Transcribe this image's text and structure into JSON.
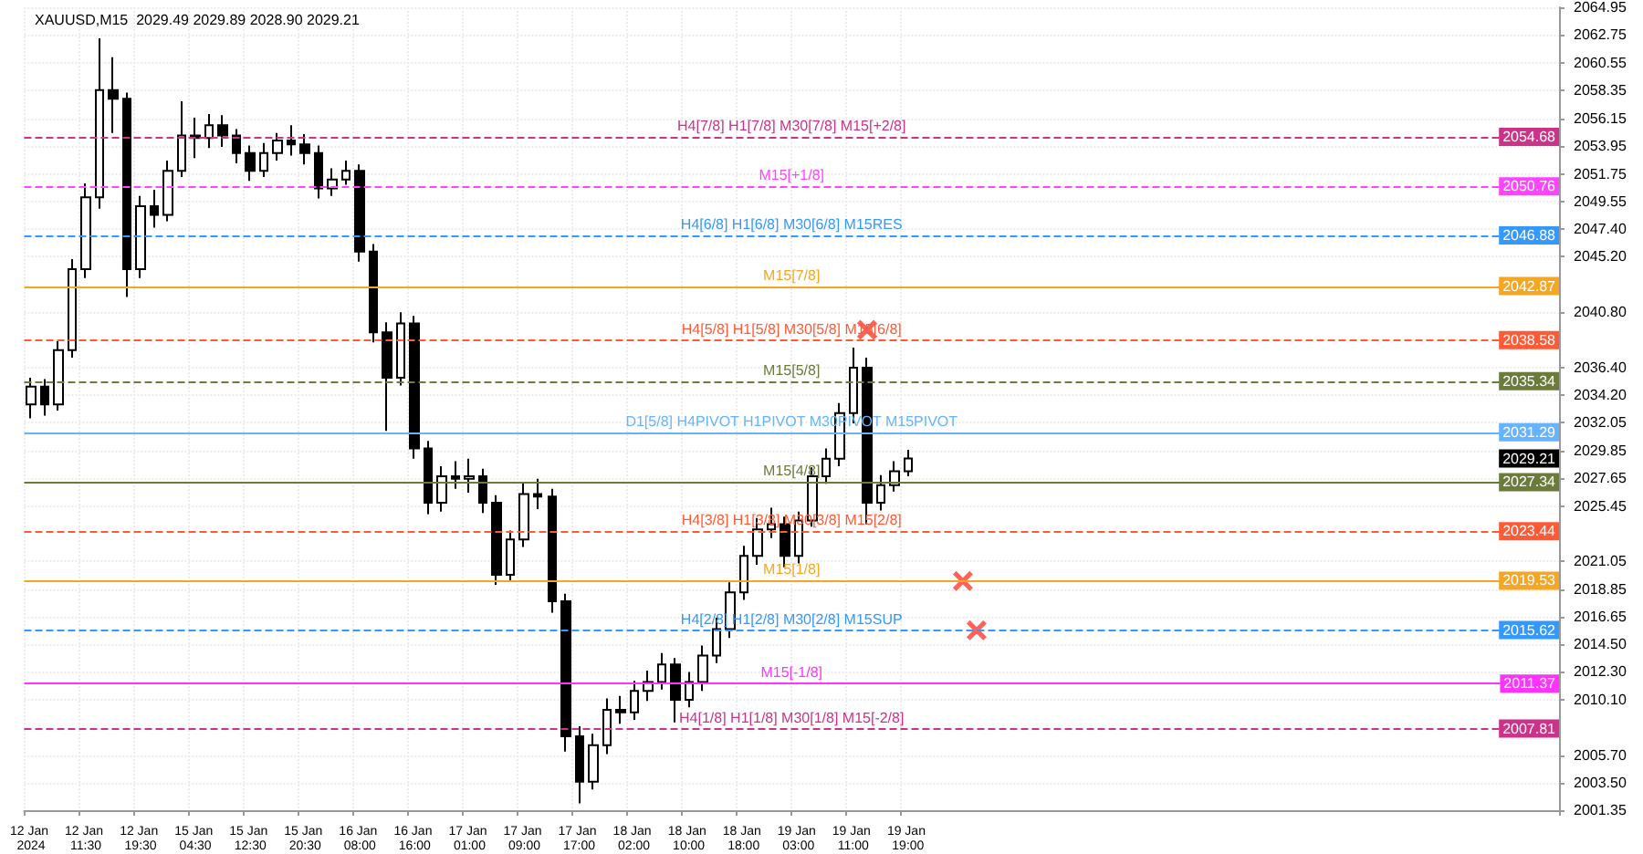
{
  "chart_data": {
    "type": "candlestick",
    "title": "XAUUSD,M15  2029.49 2029.89 2028.90 2029.21",
    "color": "#000000",
    "grid": true,
    "categories": [
      "12 Jan 2024",
      null,
      null,
      null,
      "12 Jan 11:30",
      null,
      null,
      null,
      "12 Jan 19:30",
      null,
      null,
      null,
      "15 Jan 04:30",
      null,
      null,
      null,
      "15 Jan 12:30",
      null,
      null,
      null,
      "15 Jan 20:30",
      null,
      null,
      null,
      "16 Jan 08:00",
      null,
      null,
      null,
      "16 Jan 16:00",
      null,
      null,
      null,
      "17 Jan 01:00",
      null,
      null,
      null,
      "17 Jan 09:00",
      null,
      null,
      null,
      "17 Jan 17:00",
      null,
      null,
      null,
      "18 Jan 02:00",
      null,
      null,
      null,
      "18 Jan 10:00",
      null,
      null,
      null,
      "18 Jan 18:00",
      null,
      null,
      null,
      "19 Jan 03:00",
      null,
      null,
      null,
      "19 Jan 11:00",
      null,
      null,
      null,
      "19 Jan 19:00",
      null,
      null,
      null,
      null,
      null,
      null,
      null,
      null,
      null,
      null,
      null,
      null,
      null,
      null,
      null,
      null,
      null,
      null,
      null,
      null,
      null,
      null,
      null,
      null,
      null,
      null,
      null,
      null,
      null,
      null,
      null,
      null,
      null,
      null,
      null,
      null,
      null,
      null,
      null,
      null,
      null,
      null,
      null,
      null,
      null,
      null,
      null
    ],
    "ohlc": [
      [
        2033.5,
        2035.6,
        2032.4,
        2034.9
      ],
      [
        2034.9,
        2035.5,
        2032.6,
        2033.5
      ],
      [
        2033.5,
        2038.5,
        2033.0,
        2037.8
      ],
      [
        2037.8,
        2045.0,
        2037.2,
        2044.2
      ],
      [
        2044.2,
        2051.0,
        2043.5,
        2049.9
      ],
      [
        2049.9,
        2062.5,
        2049.0,
        2058.4
      ],
      [
        2058.4,
        2061.0,
        2055.0,
        2057.7
      ],
      [
        2057.7,
        2058.2,
        2042.0,
        2044.2
      ],
      [
        2044.2,
        2050.0,
        2043.5,
        2049.2
      ],
      [
        2049.2,
        2050.5,
        2047.5,
        2048.5
      ],
      [
        2048.5,
        2052.8,
        2048.0,
        2052.0
      ],
      [
        2052.0,
        2057.5,
        2051.5,
        2054.8
      ],
      [
        2054.8,
        2056.2,
        2053.0,
        2054.6
      ],
      [
        2054.6,
        2056.5,
        2053.8,
        2055.6
      ],
      [
        2055.6,
        2056.4,
        2053.9,
        2054.8
      ],
      [
        2054.8,
        2055.3,
        2052.6,
        2053.4
      ],
      [
        2053.4,
        2054.0,
        2051.2,
        2052.0
      ],
      [
        2052.0,
        2054.2,
        2051.5,
        2053.4
      ],
      [
        2053.4,
        2055.0,
        2052.8,
        2054.4
      ],
      [
        2054.4,
        2055.6,
        2053.2,
        2054.1
      ],
      [
        2054.1,
        2054.9,
        2052.5,
        2053.4
      ],
      [
        2053.4,
        2054.0,
        2049.8,
        2050.6
      ],
      [
        2050.6,
        2052.2,
        2050.0,
        2051.3
      ],
      [
        2051.3,
        2052.8,
        2050.9,
        2052.0
      ],
      [
        2052.0,
        2052.5,
        2044.8,
        2045.6
      ],
      [
        2045.6,
        2046.2,
        2038.4,
        2039.2
      ],
      [
        2039.2,
        2040.0,
        2031.4,
        2035.6
      ],
      [
        2035.6,
        2040.8,
        2035.0,
        2039.9
      ],
      [
        2039.9,
        2040.5,
        2029.2,
        2030.0
      ],
      [
        2030.0,
        2030.6,
        2024.8,
        2025.7
      ],
      [
        2025.7,
        2028.6,
        2025.0,
        2027.8
      ],
      [
        2027.8,
        2029.0,
        2026.8,
        2027.6
      ],
      [
        2027.6,
        2029.2,
        2026.5,
        2027.8
      ],
      [
        2027.8,
        2028.4,
        2024.9,
        2025.7
      ],
      [
        2025.7,
        2026.3,
        2019.2,
        2020.0
      ],
      [
        2020.0,
        2023.5,
        2019.5,
        2022.8
      ],
      [
        2022.8,
        2027.3,
        2022.2,
        2026.4
      ],
      [
        2026.4,
        2027.6,
        2025.2,
        2026.2
      ],
      [
        2026.2,
        2026.8,
        2017.0,
        2017.9
      ],
      [
        2017.9,
        2018.5,
        2006.0,
        2007.2
      ],
      [
        2007.2,
        2008.0,
        2001.9,
        2003.6
      ],
      [
        2003.6,
        2007.4,
        2003.0,
        2006.5
      ],
      [
        2006.5,
        2010.2,
        2005.8,
        2009.3
      ],
      [
        2009.3,
        2010.4,
        2008.2,
        2009.1
      ],
      [
        2009.1,
        2011.6,
        2008.5,
        2010.8
      ],
      [
        2010.8,
        2012.4,
        2010.0,
        2011.5
      ],
      [
        2011.5,
        2013.8,
        2010.9,
        2012.9
      ],
      [
        2012.9,
        2013.4,
        2008.3,
        2010.1
      ],
      [
        2010.1,
        2012.3,
        2009.5,
        2011.5
      ],
      [
        2011.5,
        2014.4,
        2010.8,
        2013.6
      ],
      [
        2013.6,
        2016.6,
        2013.0,
        2015.7
      ],
      [
        2015.7,
        2019.4,
        2015.0,
        2018.6
      ],
      [
        2018.6,
        2022.3,
        2018.0,
        2021.5
      ],
      [
        2021.5,
        2024.5,
        2020.8,
        2023.6
      ],
      [
        2023.6,
        2025.3,
        2022.9,
        2024.0
      ],
      [
        2024.0,
        2024.6,
        2020.6,
        2021.5
      ],
      [
        2021.5,
        2025.0,
        2020.9,
        2024.3
      ],
      [
        2024.3,
        2028.5,
        2023.8,
        2027.8
      ],
      [
        2027.8,
        2030.0,
        2027.2,
        2029.2
      ],
      [
        2029.2,
        2033.6,
        2028.6,
        2032.8
      ],
      [
        2032.8,
        2038.0,
        2032.0,
        2036.4
      ],
      [
        2036.4,
        2037.2,
        2024.0,
        2025.7
      ],
      [
        2025.7,
        2027.9,
        2025.1,
        2027.1
      ],
      [
        2027.1,
        2029.0,
        2026.6,
        2028.2
      ],
      [
        2028.2,
        2029.89,
        2027.8,
        2029.21
      ],
      null,
      null,
      null,
      null,
      null,
      null,
      null,
      null,
      null,
      null,
      null,
      null,
      null,
      null,
      null,
      null,
      null,
      null,
      null,
      null,
      null,
      null,
      null,
      null,
      null,
      null,
      null,
      null,
      null,
      null,
      null,
      null,
      null,
      null,
      null,
      null,
      null,
      null,
      null,
      null,
      null,
      null,
      null,
      null,
      null,
      null,
      null
    ],
    "series": [
      {
        "type": "scatter",
        "marker": "cross",
        "color": "#ff3b30",
        "values": [
          null,
          null,
          null,
          null,
          null,
          null,
          null,
          null,
          null,
          null,
          null,
          null,
          null,
          null,
          null,
          null,
          null,
          null,
          null,
          null,
          null,
          null,
          null,
          null,
          null,
          null,
          null,
          null,
          null,
          null,
          null,
          null,
          null,
          null,
          null,
          null,
          null,
          null,
          null,
          null,
          null,
          null,
          null,
          null,
          null,
          null,
          null,
          null,
          null,
          null,
          null,
          null,
          null,
          null,
          null,
          null,
          null,
          null,
          null,
          null,
          null,
          2039.4,
          null,
          null,
          null,
          null,
          null,
          null,
          2019.5,
          2015.6,
          null,
          null,
          null,
          null,
          null,
          null,
          null,
          null,
          null,
          null,
          null,
          null,
          null,
          null,
          null,
          null,
          null,
          null,
          null,
          null,
          null,
          null,
          null,
          null,
          null,
          null,
          null,
          null,
          null,
          null,
          null,
          null,
          null,
          null,
          null,
          null,
          null,
          null,
          null,
          null,
          null,
          null
        ]
      }
    ],
    "ylim": [
      2001.35,
      2064.95
    ],
    "yticks": [
      2064.95,
      2062.75,
      2060.55,
      2058.35,
      2056.15,
      2053.95,
      2051.75,
      2049.55,
      {
        "value": 2047.4,
        "label": "2047.40"
      },
      {
        "value": 2045.2,
        "label": "2045.20"
      },
      {
        "value": 2040.8,
        "label": "2040.80"
      },
      {
        "value": 2036.4,
        "label": "2036.40"
      },
      {
        "value": 2034.2,
        "label": "2034.20"
      },
      2032.05,
      2029.85,
      2027.65,
      2025.45,
      2021.05,
      2018.85,
      2016.65,
      {
        "value": 2014.5,
        "label": "2014.50"
      },
      {
        "value": 2012.3,
        "label": "2012.30"
      },
      {
        "value": 2010.1,
        "label": "2010.10"
      },
      {
        "value": 2005.7,
        "label": "2005.70"
      },
      {
        "value": 2003.5,
        "label": "2003.50"
      },
      2001.35
    ],
    "ref_lines": [
      {
        "axis": "y",
        "value": 2054.68,
        "label": "H4[7/8] H1[7/8] M30[7/8] M15[+2/8]",
        "color": "#cc3388",
        "line_style": "dashed"
      },
      {
        "axis": "y",
        "value": 2050.76,
        "label": "M15[+1/8]",
        "color": "#ff44ff",
        "line_style": "dashed"
      },
      {
        "axis": "y",
        "value": 2046.88,
        "label": "H4[6/8] H1[6/8] M30[6/8] M15RES",
        "color": "#3399ff",
        "line_style": "dashed"
      },
      {
        "axis": "y",
        "value": 2042.87,
        "label": "M15[7/8]",
        "color": "#f5a623",
        "line_style": "solid"
      },
      {
        "axis": "y",
        "value": 2038.58,
        "label": "H4[5/8] H1[5/8] M30[5/8] M15[6/8]",
        "color": "#ff5a36",
        "line_style": "dashed"
      },
      {
        "axis": "y",
        "value": 2035.34,
        "label": "M15[5/8]",
        "color": "#6b7b3a",
        "line_style": "dashed"
      },
      {
        "axis": "y",
        "value": 2031.29,
        "label": "D1[5/8] H4PIVOT H1PIVOT M30PIVOT M15PIVOT",
        "color": "#66b3ff",
        "line_style": "solid"
      },
      {
        "axis": "y",
        "value": 2027.34,
        "label": "M15[4/8]",
        "color": "#6b7b3a",
        "line_style": "solid"
      },
      {
        "axis": "y",
        "value": 2023.44,
        "label": "H4[3/8] H1[3/8] M30[3/8] M15[2/8]",
        "color": "#ff5a36",
        "line_style": "dashed"
      },
      {
        "axis": "y",
        "value": 2019.53,
        "label": "M15[1/8]",
        "color": "#f5a623",
        "line_style": "solid"
      },
      {
        "axis": "y",
        "value": 2015.62,
        "label": "H4[2/8] H1[2/8] M30[2/8] M15SUP",
        "color": "#3399ff",
        "line_style": "dashed"
      },
      {
        "axis": "y",
        "value": 2011.37,
        "label": "M15[-1/8]",
        "color": "#ff33ff",
        "line_style": "solid"
      },
      {
        "axis": "y",
        "value": 2007.81,
        "label": "H4[1/8] H1[1/8] M30[1/8] M15[-2/8]",
        "color": "#cc3388",
        "line_style": "dashed"
      }
    ],
    "annotations": [
      "2029.21",
      {
        "text": "2054.68",
        "y": 2054.68
      },
      {
        "text": "2050.76",
        "y": 2050.76
      },
      {
        "text": "2046.88",
        "y": 2046.88
      },
      {
        "text": "2042.87",
        "y": 2042.87
      },
      {
        "text": "2038.58",
        "y": 2038.58
      },
      {
        "text": "2035.34",
        "y": 2035.34
      },
      {
        "text": "2031.29",
        "y": 2031.29
      },
      {
        "text": "2027.34",
        "y": 2027.34
      },
      {
        "text": "2023.44",
        "y": 2023.44
      },
      {
        "text": "2019.53",
        "y": 2019.53
      },
      {
        "text": "2015.62",
        "y": 2015.62
      },
      {
        "text": "2011.37",
        "y": 2011.37
      },
      {
        "text": "2007.81",
        "y": 2007.81
      }
    ]
  }
}
